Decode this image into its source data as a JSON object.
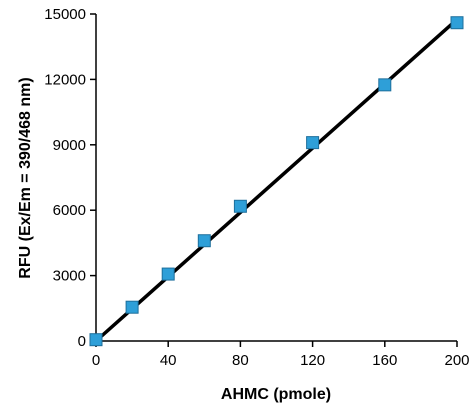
{
  "chart_data": {
    "type": "scatter",
    "title": "",
    "xlabel": "AHMC (pmole)",
    "ylabel": "RFU (Ex/Em = 390/468 nm)",
    "xlim": [
      0,
      200
    ],
    "ylim": [
      0,
      15000
    ],
    "x_ticks": [
      0,
      40,
      80,
      120,
      160,
      200
    ],
    "y_ticks": [
      0,
      3000,
      6000,
      9000,
      12000,
      15000
    ],
    "grid": false,
    "legend": "none",
    "series": [
      {
        "x": [
          0,
          20,
          40,
          60,
          80,
          120,
          160,
          200
        ],
        "y": [
          60,
          1550,
          3070,
          4600,
          6180,
          9100,
          11750,
          14600
        ],
        "marker": "square",
        "color": "#2e9fd8"
      }
    ],
    "trendline": {
      "type": "linear",
      "x": [
        0,
        200
      ],
      "y": [
        0,
        14750
      ],
      "color": "#000000"
    }
  }
}
